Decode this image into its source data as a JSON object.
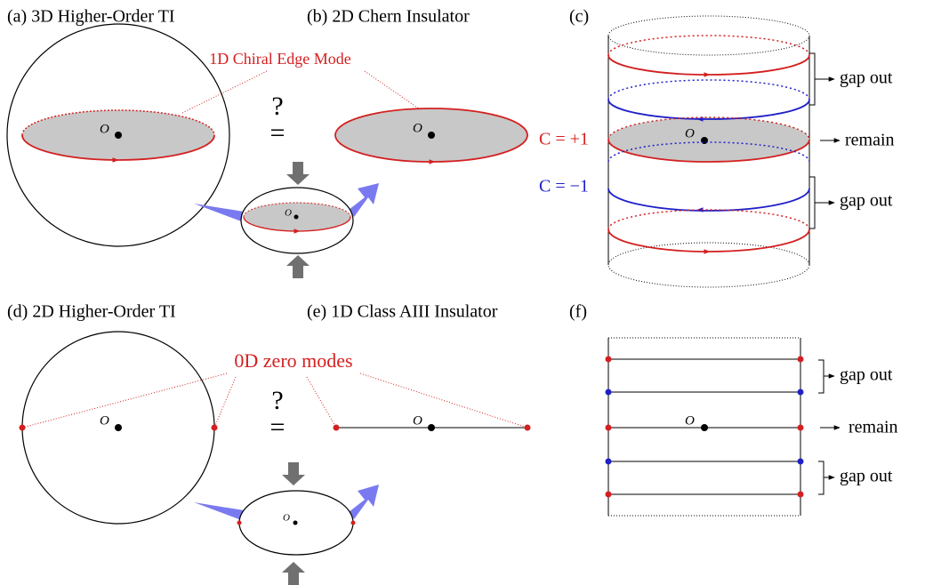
{
  "panels": {
    "a": "(a) 3D Higher-Order TI",
    "b": "(b) 2D Chern Insulator",
    "c": "(c)",
    "d": "(d) 2D Higher-Order TI",
    "e": "(e) 1D Class AIII Insulator",
    "f": "(f)"
  },
  "annotations": {
    "edge_mode": "1D Chiral Edge Mode",
    "zero_modes": "0D zero modes"
  },
  "equivalence": [
    {
      "question": "?",
      "equals": "="
    },
    {
      "question": "?",
      "equals": "="
    }
  ],
  "origin_labels": [
    "O",
    "O",
    "O",
    "O",
    "O",
    "O",
    "O",
    "O"
  ],
  "chern_numbers": [
    "C = +1",
    "C = −1"
  ],
  "layer_states": {
    "c": [
      "gap out",
      "remain",
      "gap out"
    ],
    "f": [
      "gap out",
      "remain",
      "gap out"
    ]
  }
}
